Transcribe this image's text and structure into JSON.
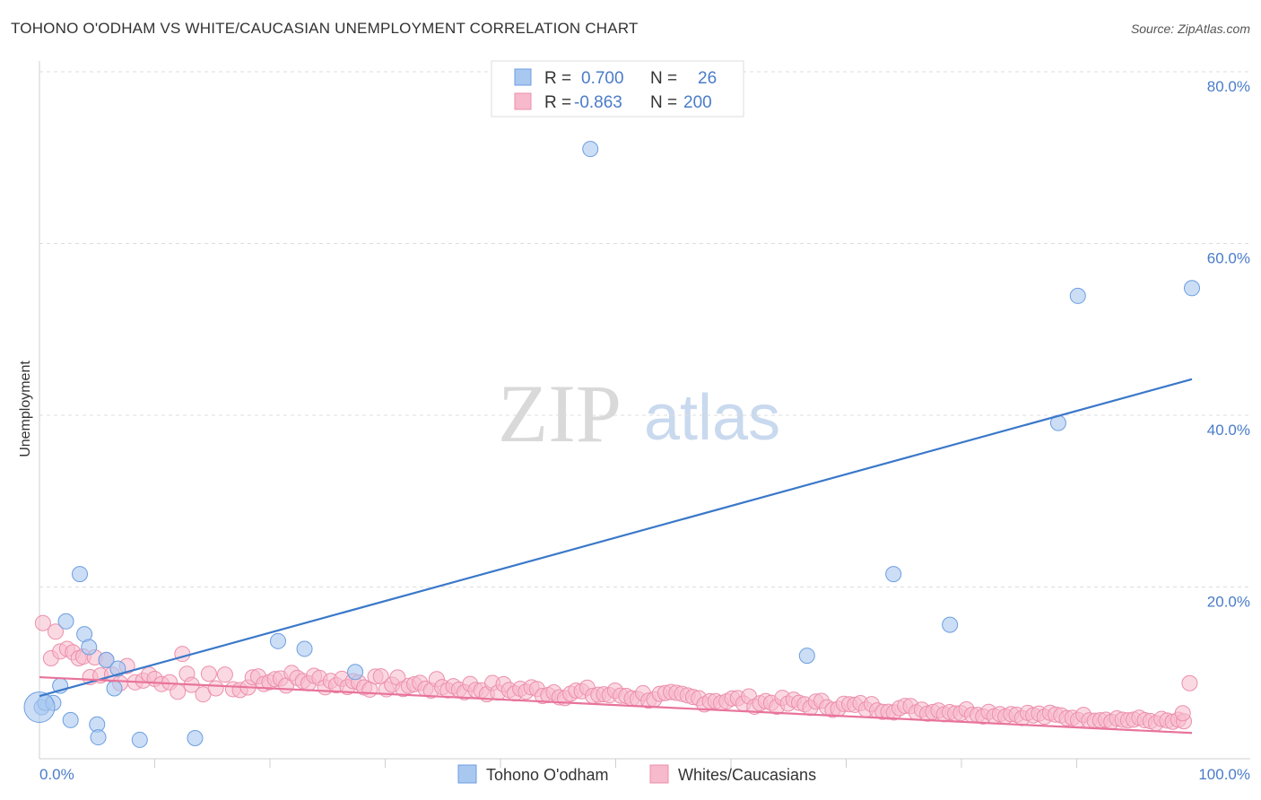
{
  "title": "TOHONO O'ODHAM VS WHITE/CAUCASIAN UNEMPLOYMENT CORRELATION CHART",
  "source": "Source: ZipAtlas.com",
  "colors": {
    "blue": "#a9c8f0",
    "blue_stroke": "#6d9ee0",
    "blue_line": "#3a78c9",
    "pink": "#f7b9cc",
    "pink_stroke": "#ec8fac",
    "pink_line": "#e8739b",
    "accent_text": "#4a7cc9"
  },
  "legend": {
    "r_label": "R =",
    "n_label": "N =",
    "rows": [
      {
        "r": "0.700",
        "n": "26"
      },
      {
        "r": "-0.863",
        "n": "200"
      }
    ]
  },
  "watermark": {
    "zip": "ZIP",
    "atlas": "atlas"
  },
  "chart_data": {
    "type": "scatter",
    "title": "TOHONO O'ODHAM VS WHITE/CAUCASIAN UNEMPLOYMENT CORRELATION CHART",
    "xlabel": "",
    "ylabel": "Unemployment",
    "xlim": [
      0,
      100
    ],
    "ylim": [
      0,
      80
    ],
    "x_tick_labels": [
      {
        "value": 0,
        "label": "0.0%"
      },
      {
        "value": 100,
        "label": "100.0%"
      }
    ],
    "y_tick_labels": [
      {
        "value": 20,
        "label": "20.0%"
      },
      {
        "value": 40,
        "label": "40.0%"
      },
      {
        "value": 60,
        "label": "60.0%"
      },
      {
        "value": 80,
        "label": "80.0%"
      }
    ],
    "y_gridlines": [
      20,
      40,
      60,
      80
    ],
    "x_minor_ticks": [
      10,
      20,
      30,
      40,
      50,
      60,
      70,
      80,
      90
    ],
    "series": [
      {
        "name": "Tohono O'odham",
        "color": "blue",
        "points": [
          [
            0.2,
            6.0
          ],
          [
            0.5,
            6.5
          ],
          [
            1.2,
            6.5
          ],
          [
            1.8,
            8.5
          ],
          [
            2.3,
            16.0
          ],
          [
            2.7,
            4.5
          ],
          [
            3.5,
            21.5
          ],
          [
            3.9,
            14.5
          ],
          [
            4.3,
            13.0
          ],
          [
            5.0,
            4.0
          ],
          [
            5.1,
            2.5
          ],
          [
            5.8,
            11.5
          ],
          [
            6.5,
            8.2
          ],
          [
            6.8,
            10.5
          ],
          [
            8.7,
            2.2
          ],
          [
            13.5,
            2.4
          ],
          [
            20.7,
            13.7
          ],
          [
            23.0,
            12.8
          ],
          [
            27.4,
            10.1
          ],
          [
            47.8,
            71.0
          ],
          [
            66.6,
            12.0
          ],
          [
            74.1,
            21.5
          ],
          [
            79.0,
            15.6
          ],
          [
            88.4,
            39.1
          ],
          [
            90.1,
            53.9
          ],
          [
            100.0,
            54.8
          ]
        ],
        "trend": {
          "x": [
            0,
            100
          ],
          "y": [
            7.3,
            44.2
          ]
        },
        "large_point": {
          "x": 0.0,
          "y": 6.0
        }
      },
      {
        "name": "Whites/Caucasians",
        "color": "pink",
        "trend": {
          "x": [
            0,
            100
          ],
          "y": [
            9.5,
            3.0
          ]
        },
        "points_generated": true,
        "count": 200
      }
    ]
  },
  "bottom_legend": [
    {
      "label": "Tohono O'odham"
    },
    {
      "label": "Whites/Caucasians"
    }
  ]
}
